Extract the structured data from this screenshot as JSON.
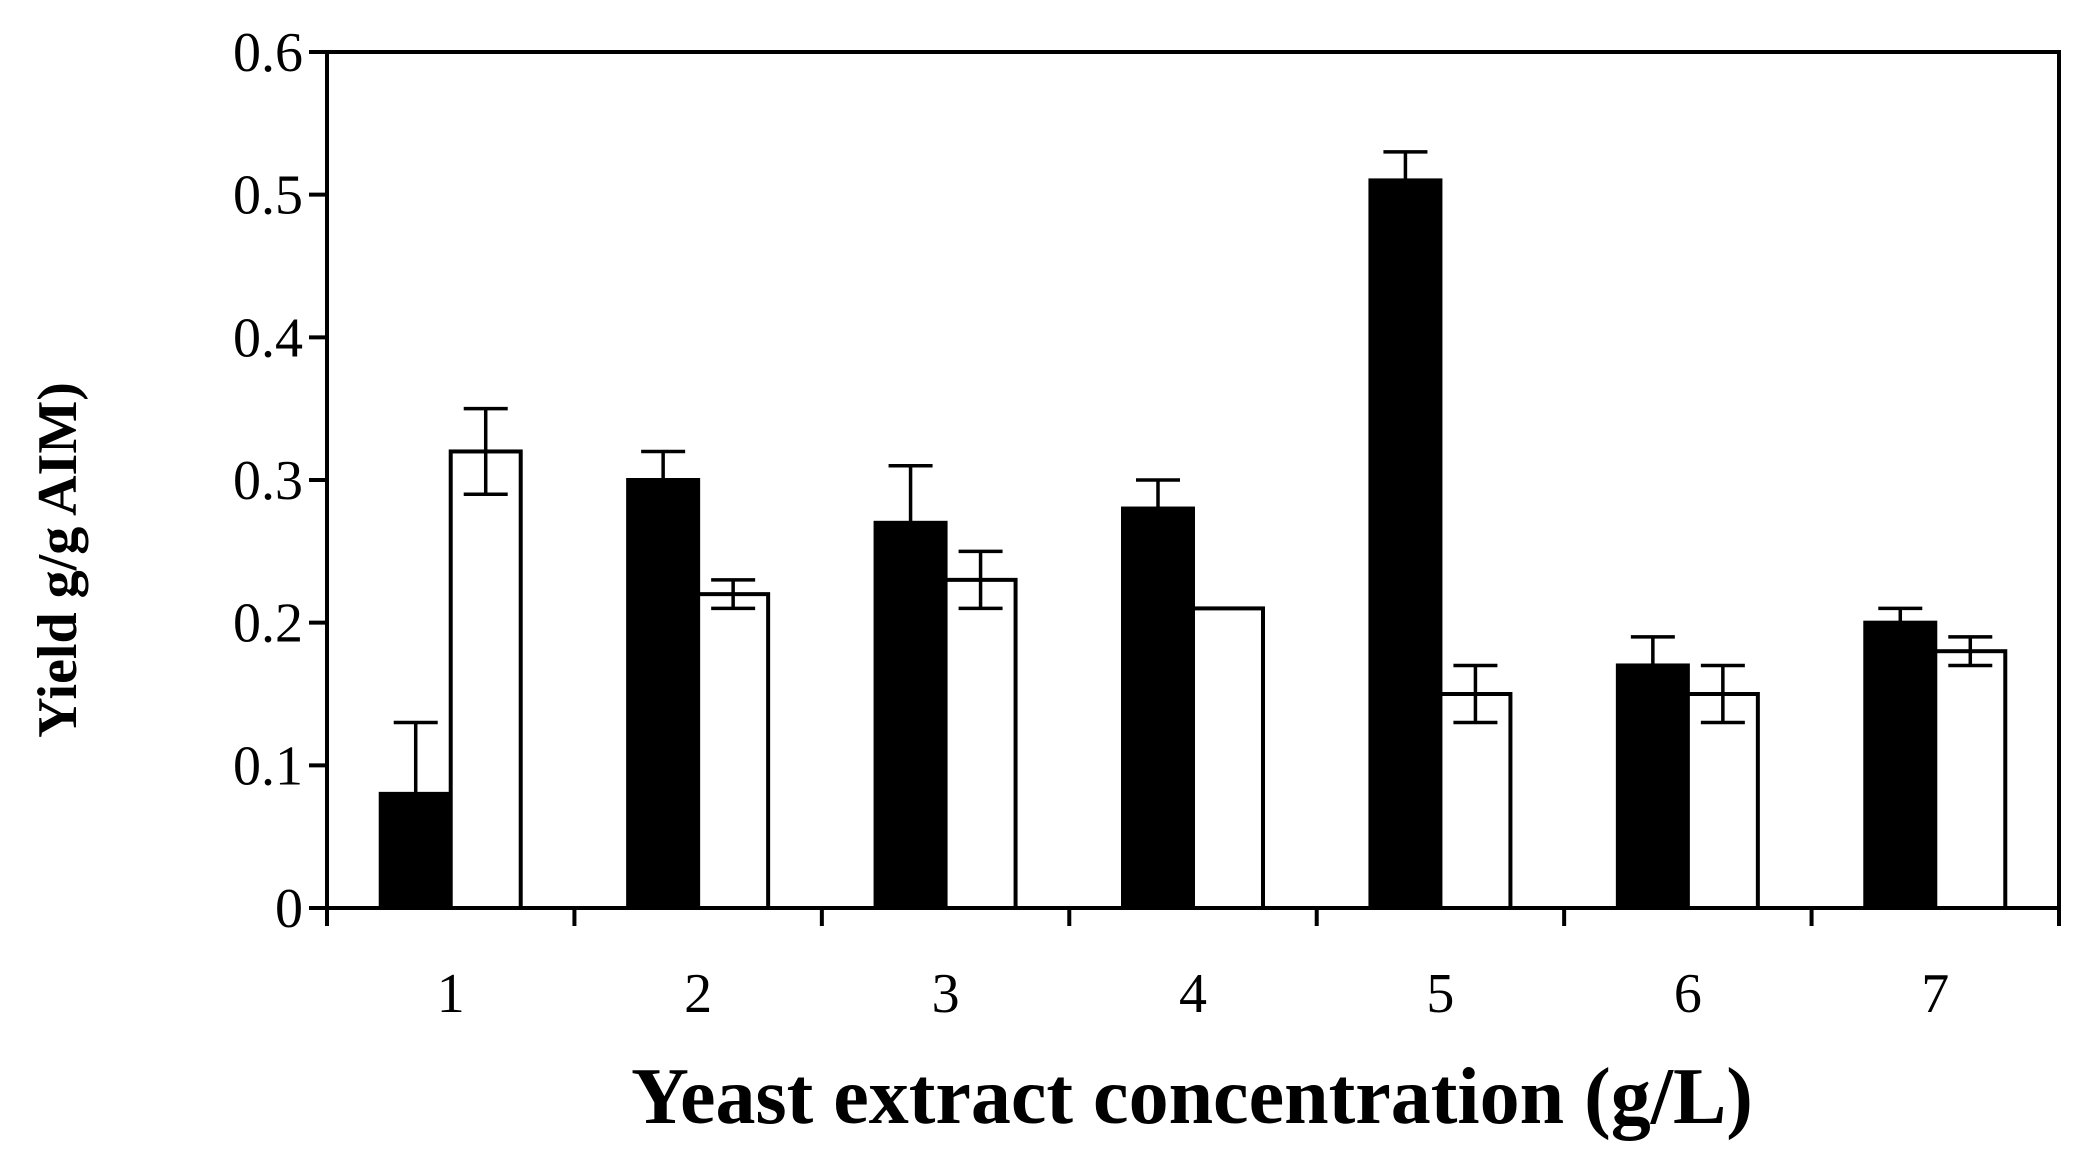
{
  "chart_data": {
    "type": "bar",
    "title": "",
    "xlabel": "Yeast extract concentration (g/L)",
    "ylabel": "Yield g/g AIM)",
    "categories": [
      "1",
      "2",
      "3",
      "4",
      "5",
      "6",
      "7"
    ],
    "ylim": [
      0,
      0.6
    ],
    "yticks": [
      "0",
      "0.1",
      "0.2",
      "0.3",
      "0.4",
      "0.5",
      "0.6"
    ],
    "ytick_values": [
      0,
      0.1,
      0.2,
      0.3,
      0.4,
      0.5,
      0.6
    ],
    "legend": "none",
    "grid": false,
    "series": [
      {
        "name": "black",
        "fill": "#000000",
        "values": [
          0.08,
          0.3,
          0.27,
          0.28,
          0.51,
          0.17,
          0.2
        ],
        "errors": [
          0.05,
          0.02,
          0.04,
          0.02,
          0.02,
          0.02,
          0.01
        ]
      },
      {
        "name": "white",
        "fill": "#ffffff",
        "values": [
          0.32,
          0.22,
          0.23,
          0.21,
          0.15,
          0.15,
          0.18
        ],
        "errors": [
          0.03,
          0.01,
          0.02,
          0.0,
          0.02,
          0.02,
          0.01
        ]
      }
    ]
  }
}
